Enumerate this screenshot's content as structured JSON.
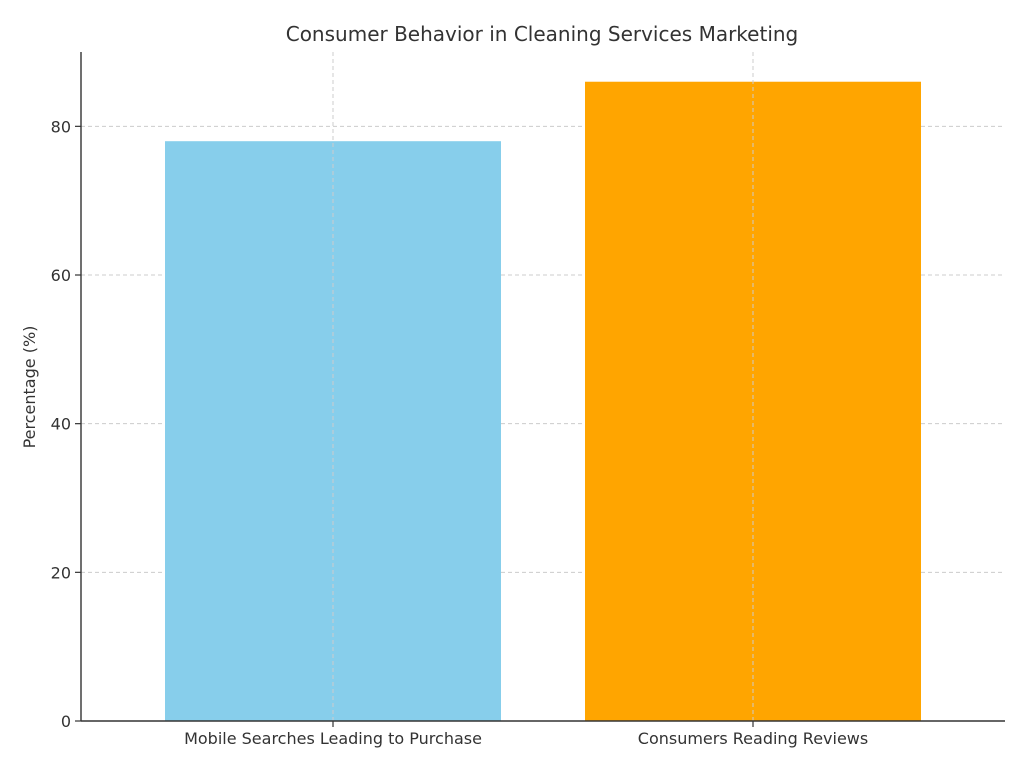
{
  "chart_data": {
    "type": "bar",
    "title": "Consumer Behavior in Cleaning Services Marketing",
    "xlabel": "",
    "ylabel": "Percentage (%)",
    "categories": [
      "Mobile Searches Leading to Purchase",
      "Consumers Reading Reviews"
    ],
    "values": [
      78,
      86
    ],
    "colors": [
      "#87ceeb",
      "#ffa500"
    ],
    "ylim": [
      0,
      90
    ],
    "yticks": [
      0,
      20,
      40,
      60,
      80
    ],
    "grid": true
  }
}
